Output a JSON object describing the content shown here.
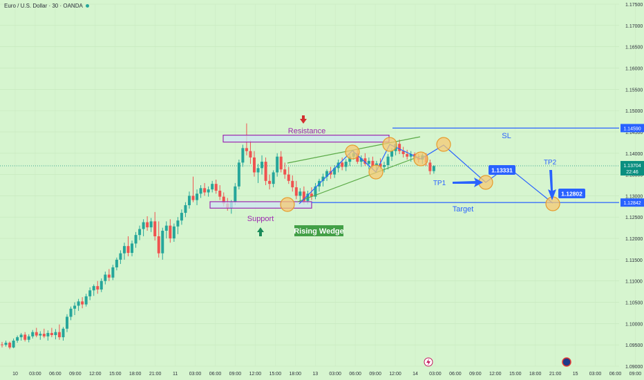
{
  "header": {
    "title": "Euro / U.S. Dollar · 30 · OANDA"
  },
  "colors": {
    "background": "#d6f5cf",
    "up": "#26a69a",
    "down": "#ef5350",
    "line_blue": "#2962ff",
    "wedge_green": "#5aaa46",
    "zone_purple": "#9c27b0",
    "zone_fill": "#cde4f2",
    "circle_fill": "#f6c873",
    "circle_stroke": "#e69a2d",
    "label_box": "#2962ff",
    "rising_wedge_box": "#43a047",
    "current_price": "#0a8f80"
  },
  "chart_data": {
    "type": "candlestick",
    "title": "Euro / U.S. Dollar · 30 · OANDA",
    "y_ticks": [
      "1.17500",
      "1.17000",
      "1.16500",
      "1.16000",
      "1.15500",
      "1.15000",
      "1.14500",
      "1.14000",
      "1.13500",
      "1.13000",
      "1.12500",
      "1.12000",
      "1.11500",
      "1.11000",
      "1.10500",
      "1.10000",
      "1.09500",
      "1.09000"
    ],
    "ylim": [
      1.09,
      1.175
    ],
    "x_ticks": [
      "10",
      "03:00",
      "06:00",
      "09:00",
      "12:00",
      "15:00",
      "18:00",
      "21:00",
      "11",
      "03:00",
      "06:00",
      "09:00",
      "12:00",
      "15:00",
      "18:00",
      "13",
      "03:00",
      "06:00",
      "09:00",
      "12:00",
      "14",
      "03:00",
      "06:00",
      "09:00",
      "12:00",
      "15:00",
      "18:00",
      "21:00",
      "15",
      "03:00",
      "06:00",
      "09:00",
      "12:00",
      "15:00"
    ],
    "price_labels": {
      "sl": "1.14590",
      "current": "1.13704",
      "countdown": "22:46",
      "target": "1.12842"
    },
    "levels": {
      "sl": 1.1459,
      "target": 1.12842,
      "resistance_top": 1.14424,
      "resistance_bottom": 1.14262,
      "support_top": 1.12862,
      "support_bottom": 1.1271
    },
    "annotations": {
      "resistance": "Resistance",
      "support": "Support",
      "pattern": "Rising Wedge",
      "sl": "SL",
      "target": "Target",
      "tp1": "TP1",
      "tp1_price": "1.13331",
      "tp2": "TP2",
      "tp2_price": "1.12802"
    },
    "projection_path": [
      [
        1.1411,
        1.1376
      ],
      [
        1.1396,
        1.1396
      ],
      [
        1.1419,
        1.1333
      ],
      [
        1.1333,
        1.1367
      ],
      [
        1.1367,
        1.128
      ]
    ],
    "candles": [
      [
        1.0951,
        1.0957,
        1.0944,
        1.095
      ],
      [
        1.095,
        1.096,
        1.0946,
        1.0955
      ],
      [
        1.0955,
        1.0958,
        1.094,
        1.0944
      ],
      [
        1.0944,
        1.0965,
        1.0942,
        1.096
      ],
      [
        1.096,
        1.0972,
        1.0955,
        1.0968
      ],
      [
        1.0968,
        1.0978,
        1.096,
        1.0974
      ],
      [
        1.0974,
        1.098,
        1.0958,
        1.0962
      ],
      [
        1.0962,
        1.0975,
        1.0956,
        1.097
      ],
      [
        1.097,
        1.0985,
        1.0965,
        1.098
      ],
      [
        1.098,
        1.099,
        1.0968,
        1.0972
      ],
      [
        1.0972,
        1.0982,
        1.0962,
        1.0976
      ],
      [
        1.0976,
        1.0988,
        1.0966,
        1.097
      ],
      [
        1.097,
        1.0984,
        1.096,
        1.0978
      ],
      [
        1.0978,
        1.099,
        1.0968,
        1.0973
      ],
      [
        1.0973,
        1.0987,
        1.0963,
        1.098
      ],
      [
        1.098,
        1.0998,
        1.0962,
        1.0968
      ],
      [
        1.0968,
        1.0992,
        1.096,
        1.0988
      ],
      [
        1.0988,
        1.1022,
        1.098,
        1.1016
      ],
      [
        1.1016,
        1.104,
        1.1008,
        1.1035
      ],
      [
        1.1035,
        1.105,
        1.102,
        1.1042
      ],
      [
        1.1042,
        1.1058,
        1.103,
        1.1052
      ],
      [
        1.1052,
        1.1062,
        1.1036,
        1.1045
      ],
      [
        1.1045,
        1.107,
        1.104,
        1.1064
      ],
      [
        1.1064,
        1.1085,
        1.1055,
        1.1078
      ],
      [
        1.1078,
        1.1092,
        1.1065,
        1.1088
      ],
      [
        1.1088,
        1.11,
        1.107,
        1.108
      ],
      [
        1.108,
        1.1106,
        1.1074,
        1.11
      ],
      [
        1.11,
        1.1122,
        1.1092,
        1.1115
      ],
      [
        1.1115,
        1.1128,
        1.11,
        1.1108
      ],
      [
        1.1108,
        1.1138,
        1.1102,
        1.1132
      ],
      [
        1.1132,
        1.1155,
        1.1125,
        1.115
      ],
      [
        1.115,
        1.1172,
        1.114,
        1.1165
      ],
      [
        1.1165,
        1.119,
        1.115,
        1.1182
      ],
      [
        1.1182,
        1.1205,
        1.1158,
        1.1166
      ],
      [
        1.1166,
        1.1195,
        1.1158,
        1.1188
      ],
      [
        1.1188,
        1.1215,
        1.1178,
        1.1208
      ],
      [
        1.1208,
        1.123,
        1.1196,
        1.1222
      ],
      [
        1.1222,
        1.1245,
        1.1205,
        1.1238
      ],
      [
        1.1238,
        1.1252,
        1.1218,
        1.1226
      ],
      [
        1.1226,
        1.1248,
        1.1215,
        1.124
      ],
      [
        1.124,
        1.1262,
        1.1195,
        1.1205
      ],
      [
        1.1205,
        1.124,
        1.1155,
        1.1165
      ],
      [
        1.1165,
        1.1225,
        1.115,
        1.1218
      ],
      [
        1.1218,
        1.124,
        1.12,
        1.123
      ],
      [
        1.123,
        1.1245,
        1.119,
        1.12
      ],
      [
        1.12,
        1.1235,
        1.1192,
        1.1228
      ],
      [
        1.1228,
        1.125,
        1.121,
        1.1242
      ],
      [
        1.1242,
        1.1268,
        1.1232,
        1.126
      ],
      [
        1.126,
        1.1285,
        1.125,
        1.1278
      ],
      [
        1.1278,
        1.131,
        1.127,
        1.13
      ],
      [
        1.13,
        1.1345,
        1.1285,
        1.129
      ],
      [
        1.129,
        1.1315,
        1.1278,
        1.1305
      ],
      [
        1.1305,
        1.1325,
        1.1295,
        1.1318
      ],
      [
        1.1318,
        1.133,
        1.13,
        1.1308
      ],
      [
        1.1308,
        1.1322,
        1.1298,
        1.1315
      ],
      [
        1.1315,
        1.1335,
        1.1308,
        1.1328
      ],
      [
        1.1328,
        1.1338,
        1.1305,
        1.1312
      ],
      [
        1.1312,
        1.1325,
        1.129,
        1.1298
      ],
      [
        1.1298,
        1.1308,
        1.1275,
        1.1282
      ],
      [
        1.1282,
        1.1295,
        1.1265,
        1.1272
      ],
      [
        1.1272,
        1.129,
        1.1258,
        1.1285
      ],
      [
        1.1285,
        1.133,
        1.1278,
        1.1322
      ],
      [
        1.1322,
        1.1385,
        1.1315,
        1.1378
      ],
      [
        1.1378,
        1.142,
        1.1368,
        1.1412
      ],
      [
        1.1412,
        1.147,
        1.1395,
        1.1405
      ],
      [
        1.1405,
        1.143,
        1.1375,
        1.139
      ],
      [
        1.139,
        1.1405,
        1.1345,
        1.1355
      ],
      [
        1.1355,
        1.1375,
        1.133,
        1.1365
      ],
      [
        1.1365,
        1.1395,
        1.135,
        1.138
      ],
      [
        1.138,
        1.139,
        1.1325,
        1.1335
      ],
      [
        1.1335,
        1.135,
        1.1315,
        1.1328
      ],
      [
        1.1328,
        1.136,
        1.132,
        1.1355
      ],
      [
        1.1355,
        1.14,
        1.1345,
        1.1392
      ],
      [
        1.1392,
        1.1405,
        1.1355,
        1.1362
      ],
      [
        1.1362,
        1.1378,
        1.134,
        1.135
      ],
      [
        1.135,
        1.1368,
        1.1328,
        1.1335
      ],
      [
        1.1335,
        1.1348,
        1.131,
        1.132
      ],
      [
        1.132,
        1.1335,
        1.1292,
        1.13
      ],
      [
        1.13,
        1.1318,
        1.1285,
        1.131
      ],
      [
        1.131,
        1.1322,
        1.128,
        1.1288
      ],
      [
        1.1288,
        1.1312,
        1.128,
        1.1305
      ],
      [
        1.1305,
        1.132,
        1.129,
        1.1298
      ],
      [
        1.1298,
        1.133,
        1.1292,
        1.1322
      ],
      [
        1.1322,
        1.134,
        1.131,
        1.1335
      ],
      [
        1.1335,
        1.1352,
        1.1322,
        1.1345
      ],
      [
        1.1345,
        1.1362,
        1.1335,
        1.1358
      ],
      [
        1.1358,
        1.1368,
        1.134,
        1.135
      ],
      [
        1.135,
        1.1372,
        1.1342,
        1.1365
      ],
      [
        1.1365,
        1.1385,
        1.1355,
        1.1378
      ],
      [
        1.1378,
        1.139,
        1.136,
        1.1368
      ],
      [
        1.1368,
        1.1386,
        1.1358,
        1.138
      ],
      [
        1.138,
        1.1398,
        1.137,
        1.1392
      ],
      [
        1.1392,
        1.1408,
        1.1385,
        1.14
      ],
      [
        1.14,
        1.141,
        1.1375,
        1.138
      ],
      [
        1.138,
        1.1395,
        1.1368,
        1.1388
      ],
      [
        1.1388,
        1.14,
        1.137,
        1.1375
      ],
      [
        1.1375,
        1.139,
        1.1362,
        1.1382
      ],
      [
        1.1382,
        1.1392,
        1.1365,
        1.137
      ],
      [
        1.137,
        1.1382,
        1.1358,
        1.1376
      ],
      [
        1.1376,
        1.1388,
        1.1362,
        1.1368
      ],
      [
        1.1368,
        1.138,
        1.1355,
        1.1372
      ],
      [
        1.1372,
        1.1398,
        1.1362,
        1.1392
      ],
      [
        1.1392,
        1.1412,
        1.1382,
        1.1405
      ],
      [
        1.1405,
        1.1428,
        1.1395,
        1.1422
      ],
      [
        1.1422,
        1.1432,
        1.1398,
        1.1405
      ],
      [
        1.1405,
        1.1415,
        1.139,
        1.1398
      ],
      [
        1.1398,
        1.1408,
        1.1385,
        1.1392
      ],
      [
        1.1392,
        1.1405,
        1.138,
        1.1398
      ],
      [
        1.1398,
        1.1402,
        1.1382,
        1.139
      ],
      [
        1.139,
        1.1398,
        1.1378,
        1.1385
      ],
      [
        1.1385,
        1.14,
        1.1375,
        1.1395
      ],
      [
        1.1395,
        1.14,
        1.137,
        1.1378
      ],
      [
        1.1378,
        1.1385,
        1.135,
        1.1358
      ],
      [
        1.1358,
        1.1372,
        1.1352,
        1.137
      ]
    ]
  }
}
